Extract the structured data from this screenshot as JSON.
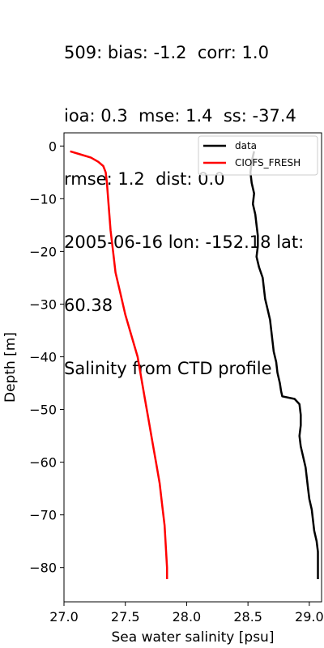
{
  "title_lines": [
    "509: bias: -1.2  corr: 1.0",
    "ioa: 0.3  mse: 1.4  ss: -37.4",
    "rmse: 1.2  dist: 0.0",
    "2005-06-16 lon: -152.18 lat:",
    "60.38",
    "Salinity from CTD profile"
  ],
  "chart_data": {
    "type": "line",
    "xlabel": "Sea water salinity [psu]",
    "ylabel": "Depth [m]",
    "xlim": [
      27.0,
      29.1
    ],
    "ylim": [
      -86.5,
      2.5
    ],
    "xticks": [
      27.0,
      27.5,
      28.0,
      28.5,
      29.0
    ],
    "xtick_labels": [
      "27.0",
      "27.5",
      "28.0",
      "28.5",
      "29.0"
    ],
    "yticks": [
      0,
      -10,
      -20,
      -30,
      -40,
      -50,
      -60,
      -70,
      -80
    ],
    "ytick_labels": [
      "0",
      "−10",
      "−20",
      "−30",
      "−40",
      "−50",
      "−60",
      "−70",
      "−80"
    ],
    "grid": false,
    "legend_position": "top-right",
    "series": [
      {
        "name": "data",
        "color": "#000000",
        "points": [
          [
            28.55,
            -1
          ],
          [
            28.53,
            -3
          ],
          [
            28.52,
            -5
          ],
          [
            28.53,
            -7
          ],
          [
            28.55,
            -9
          ],
          [
            28.54,
            -11
          ],
          [
            28.56,
            -13
          ],
          [
            28.57,
            -15
          ],
          [
            28.58,
            -17
          ],
          [
            28.58,
            -19
          ],
          [
            28.57,
            -21
          ],
          [
            28.59,
            -23
          ],
          [
            28.62,
            -25
          ],
          [
            28.63,
            -27
          ],
          [
            28.64,
            -29
          ],
          [
            28.66,
            -31
          ],
          [
            28.68,
            -33
          ],
          [
            28.69,
            -35
          ],
          [
            28.7,
            -37
          ],
          [
            28.71,
            -39
          ],
          [
            28.73,
            -41
          ],
          [
            28.74,
            -43
          ],
          [
            28.76,
            -45
          ],
          [
            28.77,
            -46.5
          ],
          [
            28.78,
            -47.5
          ],
          [
            28.88,
            -48
          ],
          [
            28.92,
            -49
          ],
          [
            28.93,
            -51
          ],
          [
            28.93,
            -53
          ],
          [
            28.92,
            -55
          ],
          [
            28.93,
            -57
          ],
          [
            28.95,
            -59
          ],
          [
            28.97,
            -61
          ],
          [
            28.98,
            -63
          ],
          [
            28.99,
            -65
          ],
          [
            29.0,
            -67
          ],
          [
            29.02,
            -69
          ],
          [
            29.03,
            -71
          ],
          [
            29.04,
            -73
          ],
          [
            29.06,
            -75
          ],
          [
            29.07,
            -77
          ],
          [
            29.07,
            -79
          ],
          [
            29.07,
            -81
          ],
          [
            29.07,
            -82.2
          ]
        ]
      },
      {
        "name": "CIOFS_FRESH",
        "color": "#ff0000",
        "points": [
          [
            27.05,
            -1
          ],
          [
            27.12,
            -1.5
          ],
          [
            27.22,
            -2.2
          ],
          [
            27.28,
            -3
          ],
          [
            27.32,
            -3.8
          ],
          [
            27.34,
            -5
          ],
          [
            27.35,
            -7
          ],
          [
            27.36,
            -10
          ],
          [
            27.37,
            -13
          ],
          [
            27.38,
            -16
          ],
          [
            27.4,
            -20
          ],
          [
            27.42,
            -24
          ],
          [
            27.46,
            -28
          ],
          [
            27.5,
            -32
          ],
          [
            27.55,
            -36
          ],
          [
            27.6,
            -40
          ],
          [
            27.63,
            -44
          ],
          [
            27.66,
            -48
          ],
          [
            27.69,
            -52
          ],
          [
            27.72,
            -56
          ],
          [
            27.75,
            -60
          ],
          [
            27.78,
            -64
          ],
          [
            27.8,
            -68
          ],
          [
            27.82,
            -72
          ],
          [
            27.83,
            -76
          ],
          [
            27.84,
            -80
          ],
          [
            27.84,
            -82.2
          ]
        ]
      }
    ]
  }
}
